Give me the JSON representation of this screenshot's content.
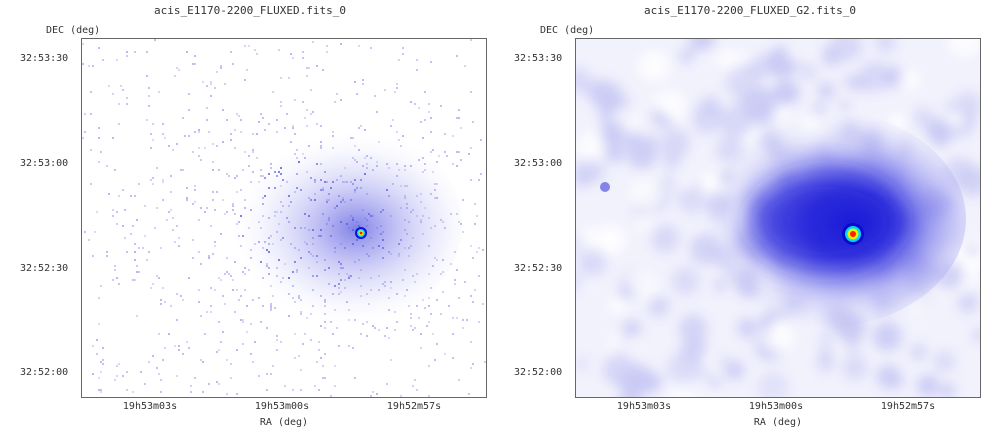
{
  "panels": [
    {
      "title": "acis_E1170-2200_FLUXED.fits_0",
      "y_axis_label": "DEC (deg)",
      "x_axis_label": "RA (deg)",
      "y_ticks": [
        "32:53:30",
        "32:53:00",
        "32:52:30",
        "32:52:00"
      ],
      "x_ticks": [
        "19h53m03s",
        "19h53m00s",
        "19h52m57s"
      ],
      "image_style": "raw-counts"
    },
    {
      "title": "acis_E1170-2200_FLUXED_G2.fits_0",
      "y_axis_label": "DEC (deg)",
      "x_axis_label": "RA (deg)",
      "y_ticks": [
        "32:53:30",
        "32:53:00",
        "32:52:30",
        "32:52:00"
      ],
      "x_ticks": [
        "19h53m03s",
        "19h53m00s",
        "19h52m57s"
      ],
      "image_style": "gaussian-smoothed"
    }
  ],
  "colors": {
    "faint": "#b8b8f0",
    "diffuse": "#6a6ae8",
    "core": "#1414d8",
    "peak_ring_outer": "#00e0ff",
    "peak_ring_mid": "#f0f000",
    "peak_center": "#ff2000"
  }
}
